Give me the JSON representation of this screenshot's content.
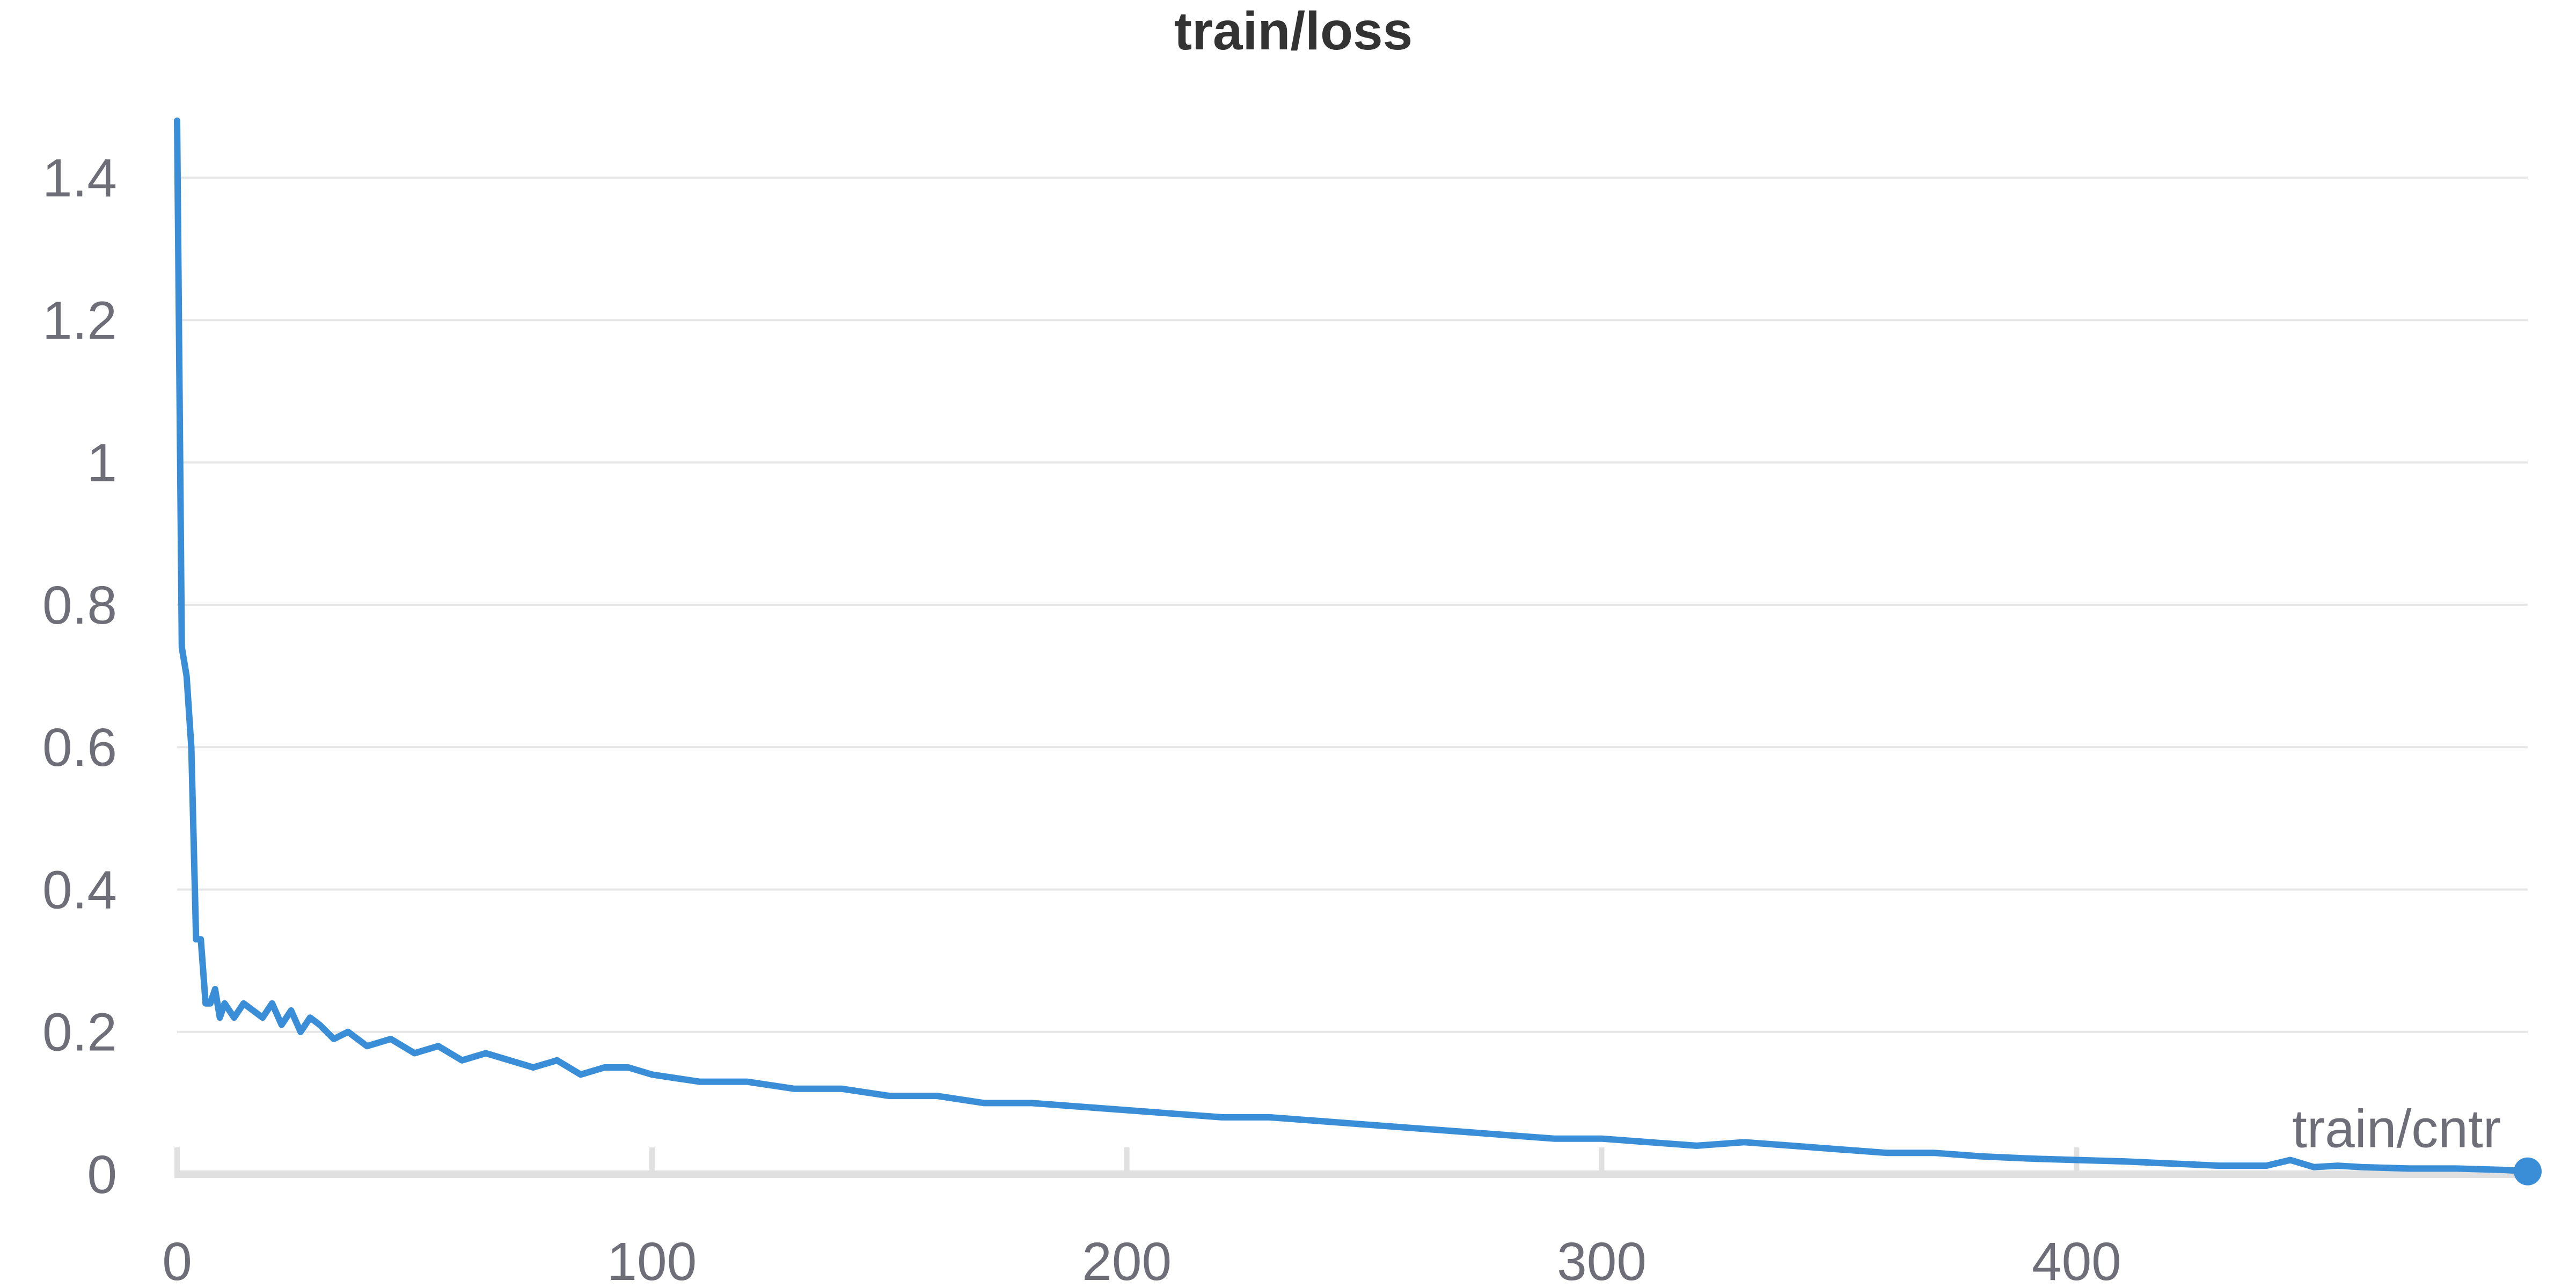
{
  "chart_data": {
    "type": "line",
    "title": "train/loss",
    "xlabel": "",
    "ylabel": "",
    "xlim": [
      0,
      495
    ],
    "ylim": [
      0,
      1.48
    ],
    "x_ticks": [
      0,
      100,
      200,
      300,
      400
    ],
    "x_tick_labels": [
      "0",
      "100",
      "200",
      "300",
      "400"
    ],
    "y_ticks": [
      0,
      0.2,
      0.4,
      0.6,
      0.8,
      1,
      1.2,
      1.4
    ],
    "y_tick_labels": [
      "0",
      "0.2",
      "0.4",
      "0.6",
      "0.8",
      "1",
      "1.2",
      "1.4"
    ],
    "grid": true,
    "series": [
      {
        "name": "train/cntr",
        "color": "#3a8ed8",
        "x": [
          0,
          1,
          2,
          3,
          4,
          5,
          6,
          7,
          8,
          9,
          10,
          12,
          14,
          16,
          18,
          20,
          22,
          24,
          26,
          28,
          30,
          33,
          36,
          40,
          45,
          50,
          55,
          60,
          65,
          70,
          75,
          80,
          85,
          90,
          95,
          100,
          110,
          120,
          130,
          140,
          150,
          160,
          170,
          180,
          190,
          200,
          210,
          220,
          230,
          240,
          250,
          260,
          270,
          280,
          290,
          300,
          310,
          320,
          330,
          340,
          350,
          360,
          370,
          380,
          390,
          400,
          410,
          420,
          430,
          440,
          445,
          450,
          455,
          460,
          470,
          480,
          490,
          495
        ],
        "values": [
          1.48,
          0.74,
          0.7,
          0.6,
          0.33,
          0.33,
          0.24,
          0.24,
          0.26,
          0.22,
          0.24,
          0.22,
          0.24,
          0.23,
          0.22,
          0.24,
          0.21,
          0.23,
          0.2,
          0.22,
          0.21,
          0.19,
          0.2,
          0.18,
          0.19,
          0.17,
          0.18,
          0.16,
          0.17,
          0.16,
          0.15,
          0.16,
          0.14,
          0.15,
          0.15,
          0.14,
          0.13,
          0.13,
          0.12,
          0.12,
          0.11,
          0.11,
          0.1,
          0.1,
          0.095,
          0.09,
          0.085,
          0.08,
          0.08,
          0.075,
          0.07,
          0.065,
          0.06,
          0.055,
          0.05,
          0.05,
          0.045,
          0.04,
          0.045,
          0.04,
          0.035,
          0.03,
          0.03,
          0.025,
          0.022,
          0.02,
          0.018,
          0.015,
          0.012,
          0.012,
          0.02,
          0.01,
          0.012,
          0.01,
          0.008,
          0.008,
          0.006,
          0.004
        ]
      }
    ]
  }
}
